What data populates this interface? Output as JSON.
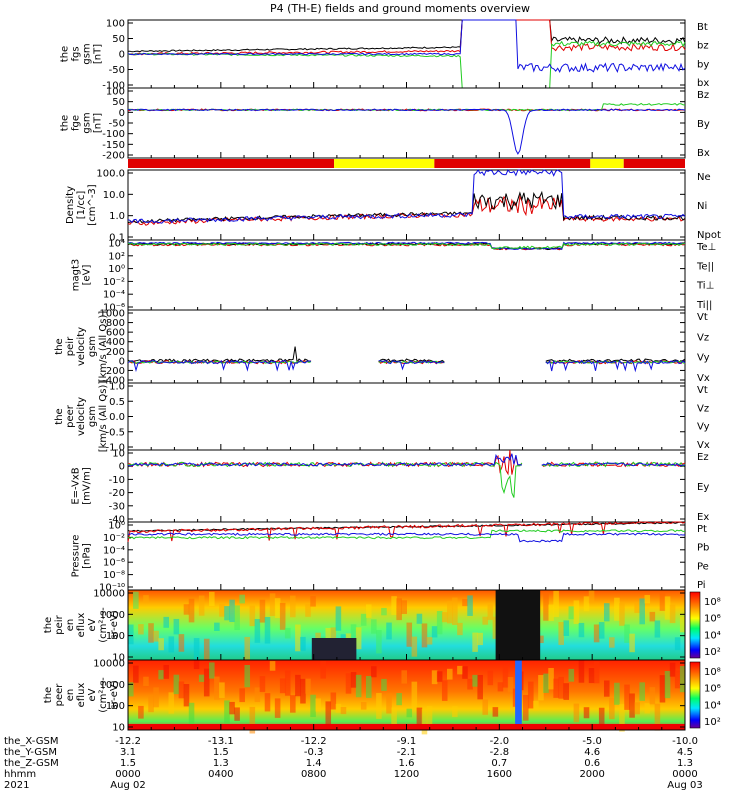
{
  "title": "P4 (TH-E) fields and ground moments overview",
  "colors": {
    "black": "#000000",
    "red": "#e00000",
    "green": "#22cc22",
    "blue": "#1010e0",
    "yellow": "#ffff00"
  },
  "chart_data": [
    {
      "id": "p1",
      "type": "line",
      "ylabel": [
        "the",
        "fgs",
        "gsm",
        "[nT]"
      ],
      "ylim": [
        -100,
        100
      ],
      "yticks": [
        "100",
        "50",
        "0",
        "-50",
        "-100"
      ],
      "series": [
        {
          "name": "Bt",
          "color": "black"
        },
        {
          "name": "bz",
          "color": "red"
        },
        {
          "name": "by",
          "color": "green"
        },
        {
          "name": "bx",
          "color": "blue"
        }
      ]
    },
    {
      "id": "p2",
      "type": "line",
      "ylabel": [
        "the",
        "fge",
        "gsm",
        "[nT]"
      ],
      "ylim": [
        -220,
        100
      ],
      "yticks": [
        "100",
        "50",
        "0",
        "-50",
        "-100",
        "-150",
        "-200"
      ],
      "series": [
        {
          "name": "Bz",
          "color": "red"
        },
        {
          "name": "By",
          "color": "green"
        },
        {
          "name": "Bx",
          "color": "blue"
        }
      ]
    },
    {
      "id": "bar",
      "type": "bar",
      "segments": [
        [
          "red",
          0.0,
          0.37
        ],
        [
          "yellow",
          0.37,
          0.55
        ],
        [
          "red",
          0.55,
          0.83
        ],
        [
          "yellow",
          0.83,
          0.89
        ],
        [
          "red",
          0.89,
          1.0
        ]
      ]
    },
    {
      "id": "p3",
      "type": "line",
      "log": true,
      "ylabel": [
        "Density",
        "[1/cc]",
        "[cm^-3]"
      ],
      "ylim": [
        0.1,
        100
      ],
      "yticks": [
        "100.0",
        "10.0",
        "1.0",
        "0.1"
      ],
      "series": [
        {
          "name": "Ne",
          "color": "red"
        },
        {
          "name": "Ni",
          "color": "black"
        },
        {
          "name": "Npot",
          "color": "blue"
        }
      ]
    },
    {
      "id": "p4",
      "type": "line",
      "log": true,
      "ylabel": [
        "magt3",
        "[eV]"
      ],
      "ylim": [
        1e-06,
        1000.0
      ],
      "yticks": [
        "10⁴",
        "10²",
        "10⁰",
        "10⁻²",
        "10⁻⁴",
        "10⁻⁶"
      ],
      "series": [
        {
          "name": "Te⊥",
          "color": "red"
        },
        {
          "name": "Te||",
          "color": "black"
        },
        {
          "name": "Ti⊥",
          "color": "blue"
        },
        {
          "name": "Ti||",
          "color": "green"
        }
      ]
    },
    {
      "id": "p5",
      "type": "line",
      "ylabel": [
        "the",
        "peir",
        "velocity",
        "gsm",
        "[km/s (All Qs)]"
      ],
      "ylim": [
        -400,
        1000
      ],
      "yticks": [
        "1000",
        "800",
        "600",
        "400",
        "200",
        "0",
        "-200",
        "-400"
      ],
      "series": [
        {
          "name": "Vt",
          "color": "black"
        },
        {
          "name": "Vz",
          "color": "red"
        },
        {
          "name": "Vy",
          "color": "green"
        },
        {
          "name": "Vx",
          "color": "blue"
        }
      ]
    },
    {
      "id": "p6",
      "type": "line",
      "ylabel": [
        "the",
        "peer",
        "velocity",
        "gsm",
        "[km/s (All Qs)]"
      ],
      "ylim": [
        -1,
        1
      ],
      "yticks": [
        "1.0",
        "0.5",
        "0.0",
        "-0.5",
        "-1.0"
      ],
      "series": [
        {
          "name": "Vt",
          "color": "black"
        },
        {
          "name": "Vz",
          "color": "red"
        },
        {
          "name": "Vy",
          "color": "green"
        },
        {
          "name": "Vx",
          "color": "blue"
        }
      ]
    },
    {
      "id": "p7",
      "type": "line",
      "ylabel": [
        "E=-VxB",
        "[mV/m]"
      ],
      "ylim": [
        -40,
        10
      ],
      "yticks": [
        "10",
        "0",
        "-10",
        "-20",
        "-30",
        "-40"
      ],
      "series": [
        {
          "name": "Ez",
          "color": "red"
        },
        {
          "name": "Ey",
          "color": "green"
        },
        {
          "name": "Ex",
          "color": "blue"
        }
      ]
    },
    {
      "id": "p8",
      "type": "line",
      "log": true,
      "ylabel": [
        "Pressure",
        "[nPa]"
      ],
      "ylim": [
        1e-10,
        1
      ],
      "yticks": [
        "10⁰",
        "10⁻²",
        "10⁻⁴",
        "10⁻⁶",
        "10⁻⁸",
        "10⁻¹⁰"
      ],
      "series": [
        {
          "name": "Pt",
          "color": "black"
        },
        {
          "name": "Pb",
          "color": "red"
        },
        {
          "name": "Pe",
          "color": "green"
        },
        {
          "name": "Pi",
          "color": "blue"
        }
      ]
    },
    {
      "id": "p9",
      "type": "heatmap",
      "ylabel": [
        "the",
        "peir",
        "en",
        "eflux",
        "eV",
        "(cm²-s-",
        "sr-eV)"
      ],
      "ylim": [
        10,
        10000
      ],
      "yticks": [
        "10000",
        "1000",
        "100",
        "10"
      ],
      "colorbar": {
        "ticks": [
          "10⁸",
          "10⁶",
          "10⁴",
          "10²"
        ],
        "label": "[eV/(cm²-s-sr-eV)] (All Qs)"
      }
    },
    {
      "id": "p10",
      "type": "heatmap",
      "ylabel": [
        "the",
        "peer",
        "en",
        "eflux",
        "eV",
        "(cm²-s-",
        "sr-eV)"
      ],
      "ylim": [
        10,
        10000
      ],
      "yticks": [
        "10000",
        "1000",
        "100",
        "10"
      ],
      "colorbar": {
        "ticks": [
          "10⁸",
          "10⁶",
          "10⁴",
          "10²"
        ],
        "label": "[eV/(cm²-s-sr-eV)]"
      }
    }
  ],
  "x_axis": {
    "row_labels": [
      "the_X-GSM",
      "the_Y-GSM",
      "the_Z-GSM",
      "hhmm",
      "2021"
    ],
    "ticks": [
      {
        "x": "-12.2",
        "y": "3.1",
        "z": "1.5",
        "t": "0000",
        "d": "Aug 02"
      },
      {
        "x": "-13.1",
        "y": "1.5",
        "z": "1.3",
        "t": "0400",
        "d": ""
      },
      {
        "x": "-12.2",
        "y": "-0.3",
        "z": "1.4",
        "t": "0800",
        "d": ""
      },
      {
        "x": "-9.1",
        "y": "-2.1",
        "z": "1.6",
        "t": "1200",
        "d": ""
      },
      {
        "x": "-2.0",
        "y": "-2.8",
        "z": "0.7",
        "t": "1600",
        "d": ""
      },
      {
        "x": "-5.0",
        "y": "4.6",
        "z": "0.6",
        "t": "2000",
        "d": ""
      },
      {
        "x": "-10.0",
        "y": "4.5",
        "z": "1.3",
        "t": "0000",
        "d": "Aug 03"
      }
    ]
  }
}
